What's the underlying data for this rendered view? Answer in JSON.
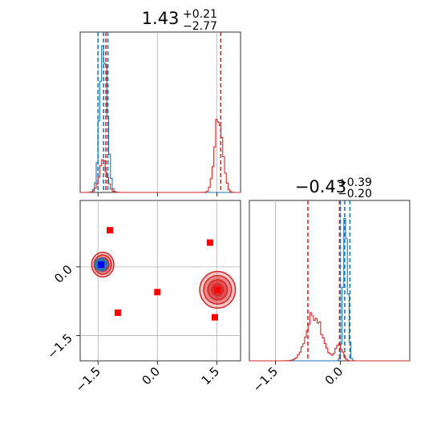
{
  "chart_data": {
    "type": "corner",
    "colors": {
      "blue": "#1f77b4",
      "red": "#d62728",
      "marker_red": "#ff0000",
      "marker_blue": "#0000ff",
      "grid": "#b0b0b0"
    },
    "panels": [
      {
        "id": "hist-param-1",
        "type": "histogram",
        "title": {
          "main": "1.43",
          "sup": "+0.21",
          "sub": "−2.77"
        },
        "xlim": [
          -1.95,
          2.1
        ],
        "grid_x": [
          -1.5,
          0.0,
          1.5
        ],
        "series": [
          {
            "color": "blue",
            "peak_centers": [
              -1.36
            ],
            "peak_sigmas": [
              0.09
            ],
            "peak_heights": [
              0.93
            ],
            "quantile_lines": [
              -1.5,
              -1.36,
              -1.25
            ]
          },
          {
            "color": "red",
            "peak_centers": [
              -1.37,
              1.55
            ],
            "peak_sigmas": [
              0.1,
              0.1
            ],
            "peak_heights": [
              0.19,
              0.5
            ],
            "quantile_lines": [
              -1.3,
              1.6
            ]
          }
        ]
      },
      {
        "id": "hist-param-2",
        "type": "histogram",
        "title": {
          "main": "−0.43",
          "sup": "+0.39",
          "sub": "−0.20"
        },
        "xlim": [
          -2.1,
          1.6
        ],
        "grid_x": [
          -1.5,
          0.0
        ],
        "series": [
          {
            "color": "blue",
            "peak_centers": [
              0.12
            ],
            "peak_sigmas": [
              0.05
            ],
            "peak_heights": [
              0.9
            ],
            "quantile_lines": [
              0.0,
              0.1,
              0.22
            ]
          },
          {
            "color": "red",
            "peak_centers": [
              -0.6,
              -0.03
            ],
            "peak_sigmas": [
              0.18,
              0.08
            ],
            "peak_heights": [
              0.3,
              0.1
            ],
            "quantile_lines": [
              -0.75,
              -0.02
            ]
          }
        ]
      },
      {
        "id": "scatter-2d",
        "type": "contour",
        "xlim": [
          -1.95,
          2.1
        ],
        "ylim": [
          -2.05,
          1.45
        ],
        "x_ticks": [
          "−1.5",
          "0.0",
          "1.5"
        ],
        "y_ticks": [
          "0.0",
          "−1.5"
        ],
        "x_tick_values": [
          -1.5,
          0.0,
          1.5
        ],
        "y_tick_values": [
          0.0,
          -1.5
        ],
        "clusters": [
          {
            "cx": -1.38,
            "cy": 0.05,
            "rx": 0.28,
            "ry": 0.27,
            "color": "red"
          },
          {
            "cx": -1.42,
            "cy": 0.05,
            "rx": 0.16,
            "ry": 0.14,
            "color": "blue"
          },
          {
            "cx": 1.52,
            "cy": -0.5,
            "rx": 0.45,
            "ry": 0.4,
            "color": "red"
          }
        ],
        "red_markers": [
          {
            "x": -1.2,
            "y": 0.8
          },
          {
            "x": 1.33,
            "y": 0.53
          },
          {
            "x": 0.0,
            "y": -0.55
          },
          {
            "x": -1.0,
            "y": -1.0
          },
          {
            "x": 1.45,
            "y": -1.1
          },
          {
            "x": 1.52,
            "y": -0.5
          }
        ],
        "blue_markers": [
          {
            "x": -1.42,
            "y": 0.05
          }
        ]
      }
    ]
  }
}
